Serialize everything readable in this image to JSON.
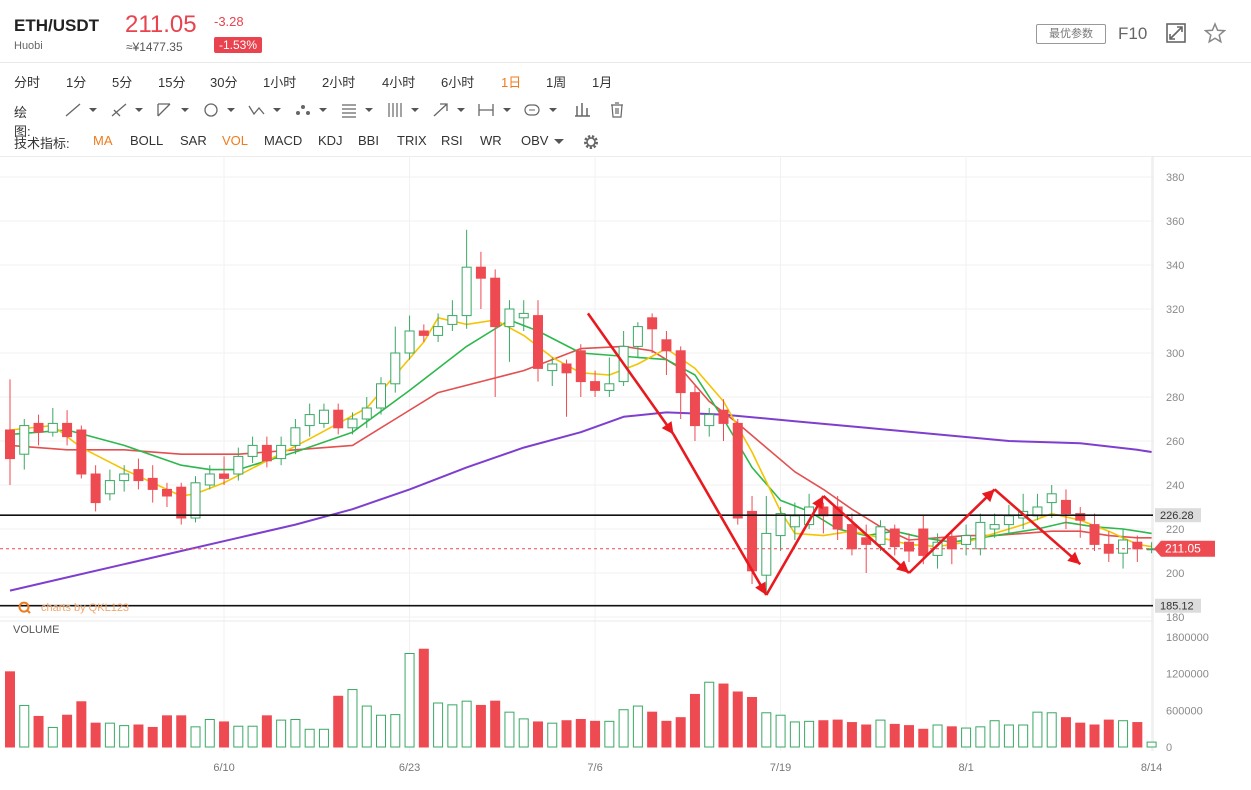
{
  "header": {
    "pair": "ETH/USDT",
    "exchange": "Huobi",
    "price": "211.05",
    "cny_price": "≈¥1477.35",
    "change": "-3.28",
    "change_pct": "-1.53%",
    "params_button": "最优参数",
    "f10": "F10"
  },
  "timeframes": [
    {
      "label": "分时",
      "active": false
    },
    {
      "label": "1分",
      "active": false
    },
    {
      "label": "5分",
      "active": false
    },
    {
      "label": "15分",
      "active": false
    },
    {
      "label": "30分",
      "active": false
    },
    {
      "label": "1小时",
      "active": false
    },
    {
      "label": "2小时",
      "active": false
    },
    {
      "label": "4小时",
      "active": false
    },
    {
      "label": "6小时",
      "active": false
    },
    {
      "label": "1日",
      "active": true
    },
    {
      "label": "1周",
      "active": false
    },
    {
      "label": "1月",
      "active": false
    }
  ],
  "drawing": {
    "label": "绘图:",
    "tools": [
      "line-tool-icon",
      "ray-tool-icon",
      "channel-tool-icon",
      "circle-tool-icon",
      "wave-tool-icon",
      "pattern-tool-icon",
      "fib-tool-icon",
      "gann-tool-icon",
      "arrow-tool-icon",
      "measure-tool-icon",
      "text-tool-icon",
      "bar-tool-icon",
      "trash-icon"
    ]
  },
  "indicators": {
    "label": "技术指标:",
    "items": [
      {
        "label": "MA",
        "active": true
      },
      {
        "label": "BOLL",
        "active": false
      },
      {
        "label": "SAR",
        "active": false
      },
      {
        "label": "VOL",
        "active": true
      },
      {
        "label": "MACD",
        "active": false
      },
      {
        "label": "KDJ",
        "active": false
      },
      {
        "label": "BBI",
        "active": false
      },
      {
        "label": "TRIX",
        "active": false
      },
      {
        "label": "RSI",
        "active": false
      },
      {
        "label": "WR",
        "active": false
      },
      {
        "label": "OBV",
        "active": false
      }
    ]
  },
  "colors": {
    "up": "#3aa864",
    "down": "#ee4a52",
    "ma_yellow": "#f5c400",
    "ma_green": "#2db84d",
    "ma_red": "#e25050",
    "ma_purple": "#7e3fcf",
    "annotation": "#e8191f",
    "accent": "#f07b1d"
  },
  "chart_data": {
    "type": "candlestick",
    "y_ticks": [
      "380",
      "360",
      "340",
      "320",
      "300",
      "280",
      "260",
      "240",
      "220",
      "200",
      "180"
    ],
    "ylim": [
      176,
      384
    ],
    "x_labels": [
      {
        "label": "6/10",
        "index": 15
      },
      {
        "label": "6/23",
        "index": 28
      },
      {
        "label": "7/6",
        "index": 41
      },
      {
        "label": "7/19",
        "index": 54
      },
      {
        "label": "8/1",
        "index": 67
      },
      {
        "label": "8/14",
        "index": 80
      }
    ],
    "price_label": "211.05",
    "support_levels": [
      {
        "value": 226.28,
        "label": "226.28"
      },
      {
        "value": 185.12,
        "label": "185.12"
      }
    ],
    "watermark": "charts by QKL123",
    "candles": [
      [
        265,
        252,
        288,
        240
      ],
      [
        254,
        267,
        270,
        247
      ],
      [
        268,
        264,
        272,
        258
      ],
      [
        264,
        268,
        275,
        262
      ],
      [
        268,
        262,
        274,
        258
      ],
      [
        265,
        245,
        267,
        243
      ],
      [
        245,
        232,
        249,
        228
      ],
      [
        236,
        242,
        247,
        233
      ],
      [
        242,
        245,
        249,
        237
      ],
      [
        247,
        242,
        252,
        238
      ],
      [
        243,
        238,
        249,
        232
      ],
      [
        238,
        235,
        241,
        230
      ],
      [
        239,
        225,
        241,
        222
      ],
      [
        225,
        241,
        244,
        223
      ],
      [
        240,
        245,
        249,
        238
      ],
      [
        245,
        243,
        253,
        240
      ],
      [
        245,
        253,
        257,
        242
      ],
      [
        253,
        258,
        262,
        250
      ],
      [
        258,
        251,
        262,
        248
      ],
      [
        252,
        258,
        262,
        249
      ],
      [
        258,
        266,
        270,
        254
      ],
      [
        267,
        272,
        277,
        262
      ],
      [
        268,
        274,
        277,
        266
      ],
      [
        274,
        266,
        277,
        263
      ],
      [
        266,
        270,
        273,
        263
      ],
      [
        270,
        275,
        280,
        266
      ],
      [
        275,
        286,
        289,
        272
      ],
      [
        286,
        300,
        312,
        282
      ],
      [
        300,
        310,
        317,
        297
      ],
      [
        310,
        308,
        313,
        305
      ],
      [
        308,
        312,
        318,
        305
      ],
      [
        313,
        317,
        324,
        310
      ],
      [
        317,
        339,
        356,
        311
      ],
      [
        339,
        334,
        346,
        320
      ],
      [
        334,
        312,
        338,
        280
      ],
      [
        312,
        320,
        324,
        296
      ],
      [
        316,
        318,
        324,
        310
      ],
      [
        317,
        293,
        324,
        287
      ],
      [
        292,
        295,
        298,
        285
      ],
      [
        295,
        291,
        297,
        271
      ],
      [
        301,
        287,
        304,
        280
      ],
      [
        287,
        283,
        292,
        280
      ],
      [
        283,
        286,
        298,
        280
      ],
      [
        287,
        303,
        310,
        285
      ],
      [
        303,
        312,
        314,
        298
      ],
      [
        316,
        311,
        318,
        300
      ],
      [
        306,
        301,
        310,
        290
      ],
      [
        301,
        282,
        303,
        270
      ],
      [
        282,
        267,
        285,
        260
      ],
      [
        267,
        272,
        275,
        262
      ],
      [
        274,
        268,
        279,
        260
      ],
      [
        268,
        225,
        270,
        222
      ],
      [
        228,
        201,
        235,
        195
      ],
      [
        199,
        218,
        235,
        190
      ],
      [
        217,
        227,
        230,
        210
      ],
      [
        221,
        226,
        232,
        215
      ],
      [
        222,
        230,
        236,
        220
      ],
      [
        230,
        226,
        232,
        218
      ],
      [
        230,
        220,
        235,
        215
      ],
      [
        222,
        211,
        227,
        208
      ],
      [
        216,
        213,
        222,
        200
      ],
      [
        213,
        221,
        224,
        210
      ],
      [
        220,
        212,
        222,
        208
      ],
      [
        214,
        210,
        218,
        205
      ],
      [
        220,
        208,
        226,
        204
      ],
      [
        208,
        214,
        218,
        202
      ],
      [
        216,
        211,
        219,
        204
      ],
      [
        213,
        217,
        222,
        208
      ],
      [
        211,
        223,
        227,
        208
      ],
      [
        220,
        222,
        227,
        216
      ],
      [
        222,
        226,
        231,
        218
      ],
      [
        225,
        228,
        236,
        220
      ],
      [
        226,
        230,
        236,
        224
      ],
      [
        232,
        236,
        240,
        225
      ],
      [
        233,
        227,
        238,
        220
      ],
      [
        227,
        224,
        230,
        216
      ],
      [
        222,
        213,
        227,
        210
      ],
      [
        213,
        209,
        219,
        205
      ],
      [
        209,
        215,
        220,
        202
      ],
      [
        214,
        211,
        217,
        205
      ],
      [
        211,
        211,
        214,
        209
      ]
    ],
    "volumes": [
      1230000,
      680000,
      500000,
      320000,
      520000,
      740000,
      390000,
      390000,
      350000,
      360000,
      320000,
      510000,
      510000,
      330000,
      450000,
      410000,
      340000,
      340000,
      510000,
      440000,
      450000,
      290000,
      290000,
      830000,
      940000,
      670000,
      520000,
      530000,
      1530000,
      1600000,
      720000,
      690000,
      750000,
      680000,
      750000,
      570000,
      460000,
      410000,
      390000,
      430000,
      450000,
      420000,
      420000,
      610000,
      670000,
      570000,
      420000,
      480000,
      860000,
      1060000,
      1030000,
      900000,
      810000,
      560000,
      520000,
      410000,
      420000,
      430000,
      440000,
      400000,
      360000,
      440000,
      370000,
      350000,
      290000,
      360000,
      330000,
      310000,
      330000,
      430000,
      360000,
      360000,
      570000,
      560000,
      480000,
      390000,
      360000,
      440000,
      430000,
      400000,
      80000
    ],
    "volume_ticks": [
      "1800000",
      "1200000",
      "600000",
      "0"
    ],
    "volume_label": "VOLUME",
    "ma": {
      "yellow": [
        [
          0,
          265
        ],
        [
          3,
          267
        ],
        [
          5,
          257
        ],
        [
          8,
          247
        ],
        [
          10,
          241
        ],
        [
          12,
          235
        ],
        [
          13,
          236
        ],
        [
          15,
          241
        ],
        [
          18,
          251
        ],
        [
          21,
          261
        ],
        [
          23,
          268
        ],
        [
          25,
          275
        ],
        [
          27,
          290
        ],
        [
          29,
          305
        ],
        [
          30,
          316
        ],
        [
          32,
          313
        ],
        [
          34,
          315
        ],
        [
          36,
          308
        ],
        [
          38,
          298
        ],
        [
          40,
          291
        ],
        [
          42,
          290
        ],
        [
          44,
          295
        ],
        [
          46,
          302
        ],
        [
          48,
          293
        ],
        [
          50,
          278
        ],
        [
          52,
          255
        ],
        [
          54,
          228
        ],
        [
          55,
          218
        ],
        [
          57,
          217
        ],
        [
          59,
          219
        ],
        [
          61,
          216
        ],
        [
          63,
          213
        ],
        [
          65,
          212
        ],
        [
          67,
          214
        ],
        [
          69,
          218
        ],
        [
          71,
          222
        ],
        [
          73,
          227
        ],
        [
          75,
          224
        ],
        [
          77,
          219
        ],
        [
          79,
          213
        ],
        [
          80,
          212
        ]
      ],
      "green": [
        [
          0,
          263
        ],
        [
          4,
          265
        ],
        [
          8,
          258
        ],
        [
          12,
          249
        ],
        [
          14,
          247
        ],
        [
          16,
          247
        ],
        [
          20,
          255
        ],
        [
          24,
          264
        ],
        [
          28,
          283
        ],
        [
          32,
          303
        ],
        [
          35,
          315
        ],
        [
          37,
          310
        ],
        [
          40,
          300
        ],
        [
          44,
          298
        ],
        [
          46,
          297
        ],
        [
          48,
          290
        ],
        [
          50,
          270
        ],
        [
          52,
          248
        ],
        [
          54,
          233
        ],
        [
          56,
          228
        ],
        [
          58,
          220
        ],
        [
          60,
          217
        ],
        [
          62,
          219
        ],
        [
          64,
          216
        ],
        [
          66,
          214
        ],
        [
          68,
          216
        ],
        [
          70,
          218
        ],
        [
          72,
          220
        ],
        [
          74,
          223
        ],
        [
          76,
          221
        ],
        [
          78,
          220
        ],
        [
          80,
          218
        ]
      ],
      "red": [
        [
          0,
          258
        ],
        [
          4,
          256
        ],
        [
          8,
          256
        ],
        [
          12,
          254
        ],
        [
          16,
          254
        ],
        [
          20,
          256
        ],
        [
          24,
          258
        ],
        [
          27,
          270
        ],
        [
          30,
          282
        ],
        [
          33,
          287
        ],
        [
          36,
          292
        ],
        [
          40,
          302
        ],
        [
          43,
          303
        ],
        [
          45,
          301
        ],
        [
          47,
          293
        ],
        [
          49,
          278
        ],
        [
          51,
          268
        ],
        [
          53,
          257
        ],
        [
          55,
          246
        ],
        [
          57,
          238
        ],
        [
          59,
          229
        ],
        [
          61,
          221
        ],
        [
          63,
          215
        ],
        [
          65,
          216
        ],
        [
          67,
          217
        ],
        [
          69,
          217
        ],
        [
          71,
          218
        ],
        [
          73,
          219
        ],
        [
          75,
          219
        ],
        [
          77,
          217
        ],
        [
          79,
          216
        ],
        [
          80,
          216
        ]
      ],
      "purple": [
        [
          0,
          192
        ],
        [
          4,
          198
        ],
        [
          8,
          204
        ],
        [
          12,
          210
        ],
        [
          16,
          216
        ],
        [
          20,
          222
        ],
        [
          24,
          229
        ],
        [
          28,
          238
        ],
        [
          32,
          248
        ],
        [
          36,
          257
        ],
        [
          40,
          264
        ],
        [
          43,
          271
        ],
        [
          46,
          273
        ],
        [
          50,
          272
        ],
        [
          55,
          269
        ],
        [
          60,
          266
        ],
        [
          65,
          263
        ],
        [
          70,
          260
        ],
        [
          75,
          259
        ],
        [
          79,
          256
        ],
        [
          80,
          255
        ]
      ]
    },
    "annotation_polyline": [
      [
        40.5,
        318
      ],
      [
        46.5,
        263
      ],
      [
        53,
        190
      ],
      [
        57,
        235
      ],
      [
        63,
        200
      ],
      [
        69,
        238
      ],
      [
        75,
        204
      ]
    ]
  }
}
